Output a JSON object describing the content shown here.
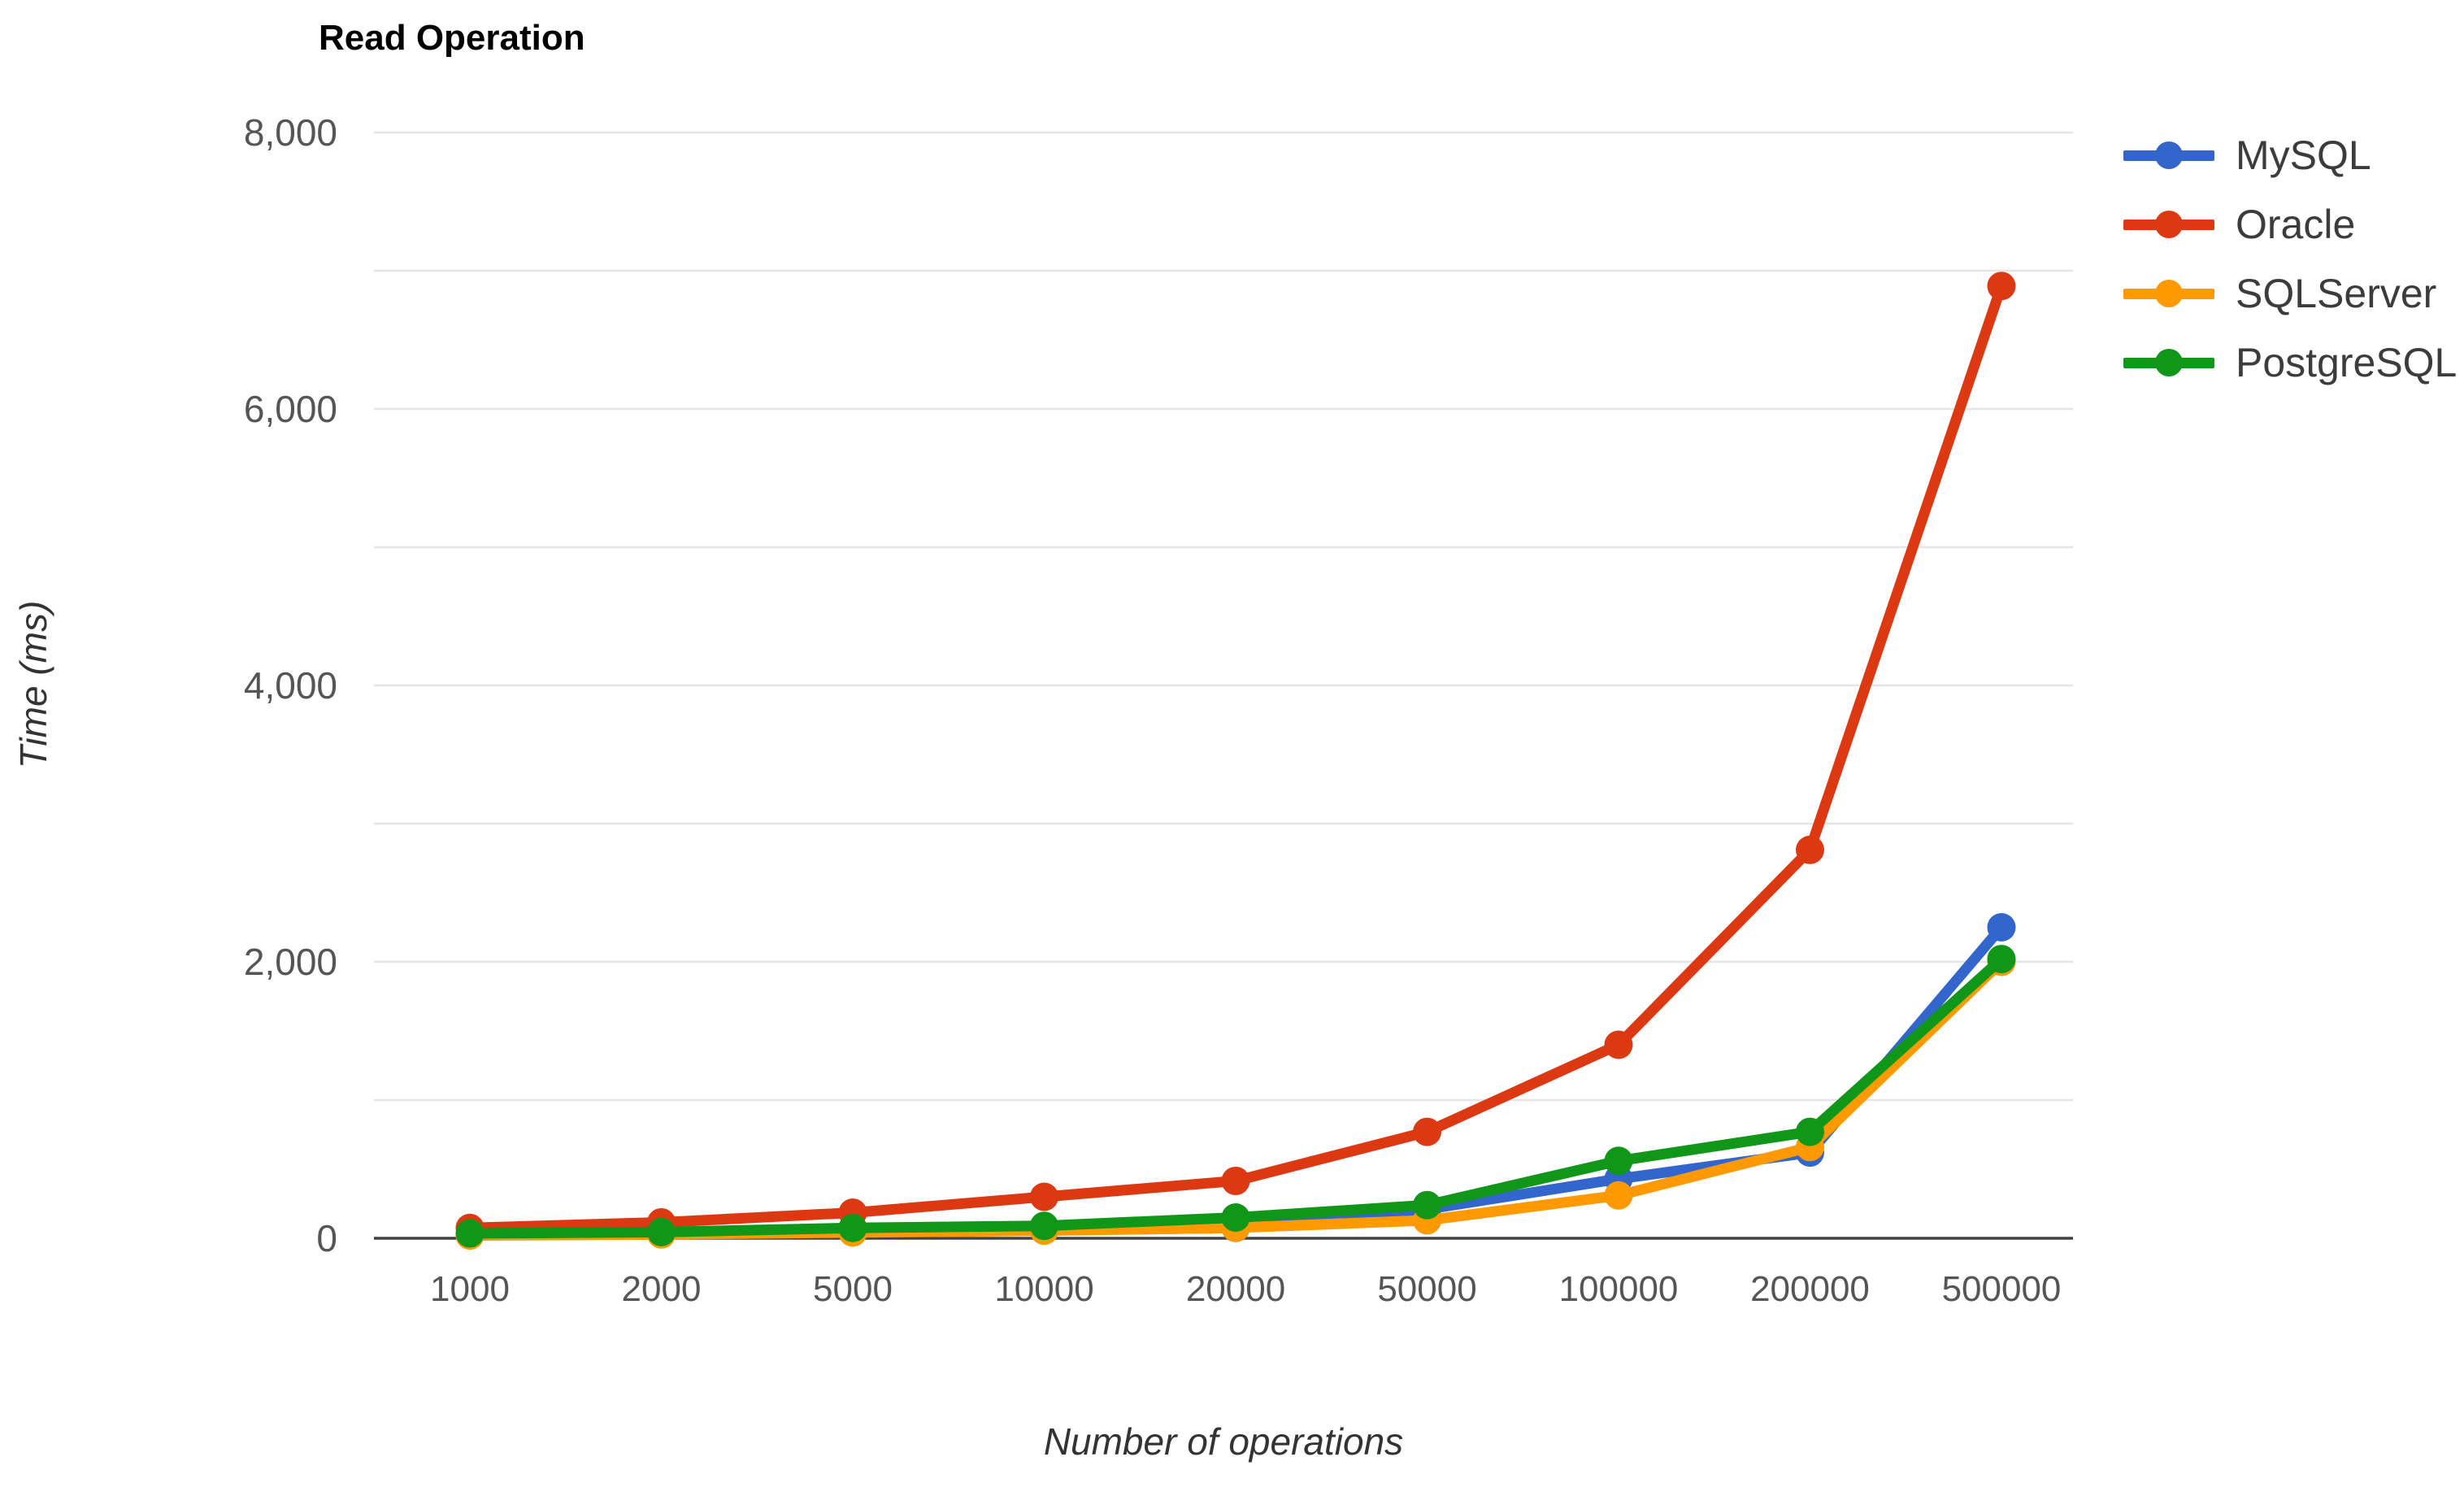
{
  "chart_data": {
    "type": "line",
    "title": "Read Operation",
    "xlabel": "Number of operations",
    "ylabel": "Time (ms)",
    "categories": [
      "1000",
      "2000",
      "5000",
      "10000",
      "20000",
      "50000",
      "100000",
      "200000",
      "500000"
    ],
    "y_axis": {
      "min": 0,
      "max": 8000,
      "label_step": 2000,
      "gridline_step": 1000,
      "tick_labels": [
        "0",
        "2,000",
        "4,000",
        "6,000",
        "8,000"
      ]
    },
    "grid": true,
    "legend_position": "right",
    "series": [
      {
        "name": "MySQL",
        "color": "#3366CC",
        "values": [
          25,
          32,
          45,
          60,
          75,
          210,
          430,
          620,
          2250
        ]
      },
      {
        "name": "Oracle",
        "color": "#DC3912",
        "values": [
          75,
          115,
          185,
          300,
          415,
          770,
          1400,
          2810,
          6890
        ]
      },
      {
        "name": "SQLServer",
        "color": "#FF9900",
        "values": [
          20,
          28,
          42,
          55,
          76,
          130,
          310,
          660,
          2000
        ]
      },
      {
        "name": "PostgreSQL",
        "color": "#109618",
        "values": [
          35,
          45,
          75,
          90,
          150,
          240,
          560,
          770,
          2020
        ]
      }
    ]
  },
  "colors": {
    "background": "#FFFFFF",
    "gridline": "#E6E6E6",
    "axis_line": "#424242",
    "tick_text": "#555555",
    "title_text": "#000000",
    "axis_title_text": "#333333",
    "legend_text": "#3C3C3C"
  }
}
